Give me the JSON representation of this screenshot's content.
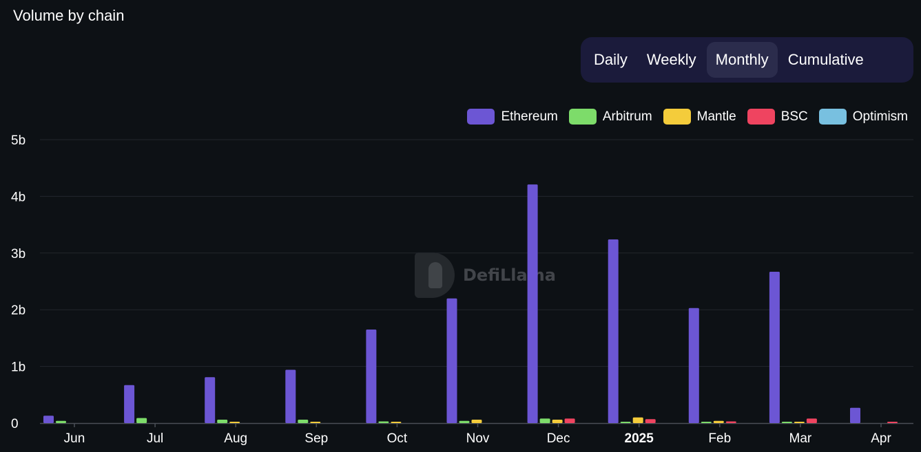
{
  "header": {
    "title": "Volume by chain"
  },
  "tabs": [
    {
      "label": "Daily",
      "active": false
    },
    {
      "label": "Weekly",
      "active": false
    },
    {
      "label": "Monthly",
      "active": true
    },
    {
      "label": "Cumulative",
      "active": false
    }
  ],
  "watermark": {
    "text": "DefiLlama"
  },
  "colors": {
    "background": "#0d1115",
    "tabs_bg": "#1b1b3b",
    "tab_active_bg": "#2b2c4c",
    "grid": "#23272d",
    "axis": "#4a4f56"
  },
  "chart_data": {
    "type": "bar",
    "categories": [
      "Jun",
      "Jul",
      "Aug",
      "Sep",
      "Oct",
      "Nov",
      "Dec",
      "2025",
      "Feb",
      "Mar",
      "Apr"
    ],
    "bold_categories": [
      "2025"
    ],
    "series": [
      {
        "name": "Ethereum",
        "color": "#6c56d4",
        "values": [
          0.13,
          0.67,
          0.81,
          0.94,
          1.65,
          2.2,
          4.21,
          3.24,
          2.03,
          2.67,
          0.27
        ]
      },
      {
        "name": "Arbitrum",
        "color": "#7ddc6a",
        "values": [
          0.04,
          0.09,
          0.06,
          0.06,
          0.03,
          0.04,
          0.08,
          0.02,
          0.02,
          0.02,
          0.0
        ]
      },
      {
        "name": "Mantle",
        "color": "#f4cc3b",
        "values": [
          0.0,
          0.0,
          0.01,
          0.02,
          0.01,
          0.06,
          0.06,
          0.1,
          0.04,
          0.01,
          0.0
        ]
      },
      {
        "name": "BSC",
        "color": "#ef4460",
        "values": [
          0.0,
          0.0,
          0.0,
          0.0,
          0.0,
          0.0,
          0.08,
          0.07,
          0.03,
          0.08,
          0.02
        ]
      },
      {
        "name": "Optimism",
        "color": "#78c0e0",
        "values": [
          0,
          0,
          0,
          0,
          0,
          0,
          0,
          0,
          0,
          0,
          0
        ]
      }
    ],
    "y_ticks": [
      {
        "value": 0,
        "label": "0"
      },
      {
        "value": 1,
        "label": "1b"
      },
      {
        "value": 2,
        "label": "2b"
      },
      {
        "value": 3,
        "label": "3b"
      },
      {
        "value": 4,
        "label": "4b"
      },
      {
        "value": 5,
        "label": "5b"
      }
    ],
    "ylim": [
      0,
      5
    ],
    "y_unit": "billions",
    "grid": true,
    "legend_position": "top-right"
  }
}
